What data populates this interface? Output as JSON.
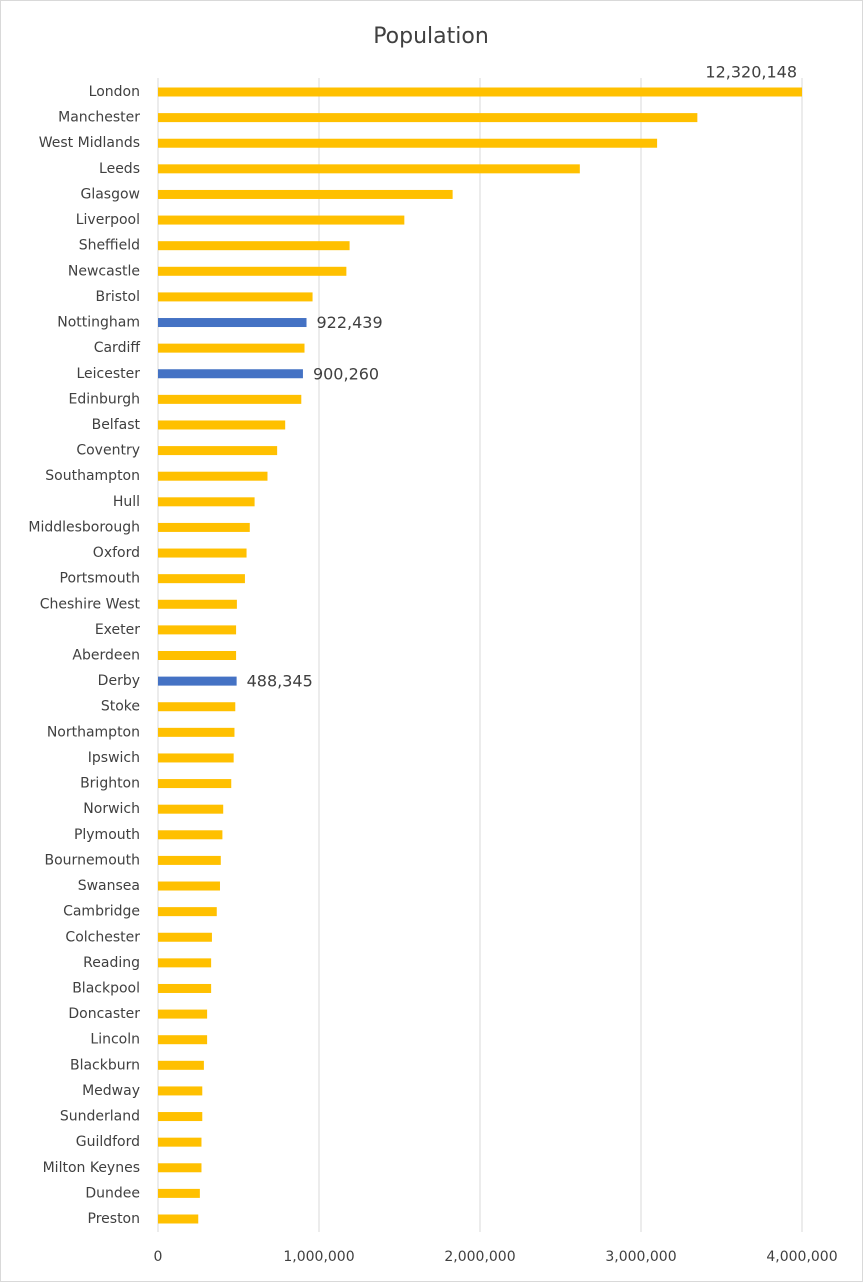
{
  "chart_data": {
    "type": "bar",
    "orientation": "horizontal",
    "title": "Population",
    "categories": [
      "London",
      "Manchester",
      "West Midlands",
      "Leeds",
      "Glasgow",
      "Liverpool",
      "Sheffield",
      "Newcastle",
      "Bristol",
      "Nottingham",
      "Cardiff",
      "Leicester",
      "Edinburgh",
      "Belfast",
      "Coventry",
      "Southampton",
      "Hull",
      "Middlesborough",
      "Oxford",
      "Portsmouth",
      "Cheshire West",
      "Exeter",
      "Aberdeen",
      "Derby",
      "Stoke",
      "Northampton",
      "Ipswich",
      "Brighton",
      "Norwich",
      "Plymouth",
      "Bournemouth",
      "Swansea",
      "Cambridge",
      "Colchester",
      "Reading",
      "Blackpool",
      "Doncaster",
      "Lincoln",
      "Blackburn",
      "Medway",
      "Sunderland",
      "Guildford",
      "Milton Keynes",
      "Dundee",
      "Preston"
    ],
    "values": [
      12320148,
      3350000,
      3100000,
      2620000,
      1830000,
      1530000,
      1190000,
      1170000,
      960000,
      922439,
      910000,
      900260,
      890000,
      790000,
      740000,
      680000,
      600000,
      570000,
      550000,
      540000,
      490000,
      485000,
      485000,
      488345,
      480000,
      475000,
      470000,
      455000,
      405000,
      400000,
      390000,
      385000,
      365000,
      335000,
      330000,
      330000,
      305000,
      305000,
      285000,
      275000,
      275000,
      270000,
      270000,
      260000,
      250000
    ],
    "value_labels": [
      "12,320,148",
      null,
      null,
      null,
      null,
      null,
      null,
      null,
      null,
      "922,439",
      null,
      "900,260",
      null,
      null,
      null,
      null,
      null,
      null,
      null,
      null,
      null,
      null,
      null,
      "488,345",
      null,
      null,
      null,
      null,
      null,
      null,
      null,
      null,
      null,
      null,
      null,
      null,
      null,
      null,
      null,
      null,
      null,
      null,
      null,
      null,
      null
    ],
    "colors": [
      "#ffc000",
      "#ffc000",
      "#ffc000",
      "#ffc000",
      "#ffc000",
      "#ffc000",
      "#ffc000",
      "#ffc000",
      "#ffc000",
      "#4472c4",
      "#ffc000",
      "#4472c4",
      "#ffc000",
      "#ffc000",
      "#ffc000",
      "#ffc000",
      "#ffc000",
      "#ffc000",
      "#ffc000",
      "#ffc000",
      "#ffc000",
      "#ffc000",
      "#ffc000",
      "#4472c4",
      "#ffc000",
      "#ffc000",
      "#ffc000",
      "#ffc000",
      "#ffc000",
      "#ffc000",
      "#ffc000",
      "#ffc000",
      "#ffc000",
      "#ffc000",
      "#ffc000",
      "#ffc000",
      "#ffc000",
      "#ffc000",
      "#ffc000",
      "#ffc000",
      "#ffc000",
      "#ffc000",
      "#ffc000",
      "#ffc000",
      "#ffc000"
    ],
    "xlim": [
      0,
      4000000
    ],
    "xticks": [
      0,
      {
        "value": 1000000,
        "label": "1,000,000"
      },
      {
        "value": 2000000,
        "label": "2,000,000"
      },
      {
        "value": 3000000,
        "label": "3,000,000"
      },
      {
        "value": 4000000,
        "label": "4,000,000"
      }
    ],
    "grid": true
  }
}
